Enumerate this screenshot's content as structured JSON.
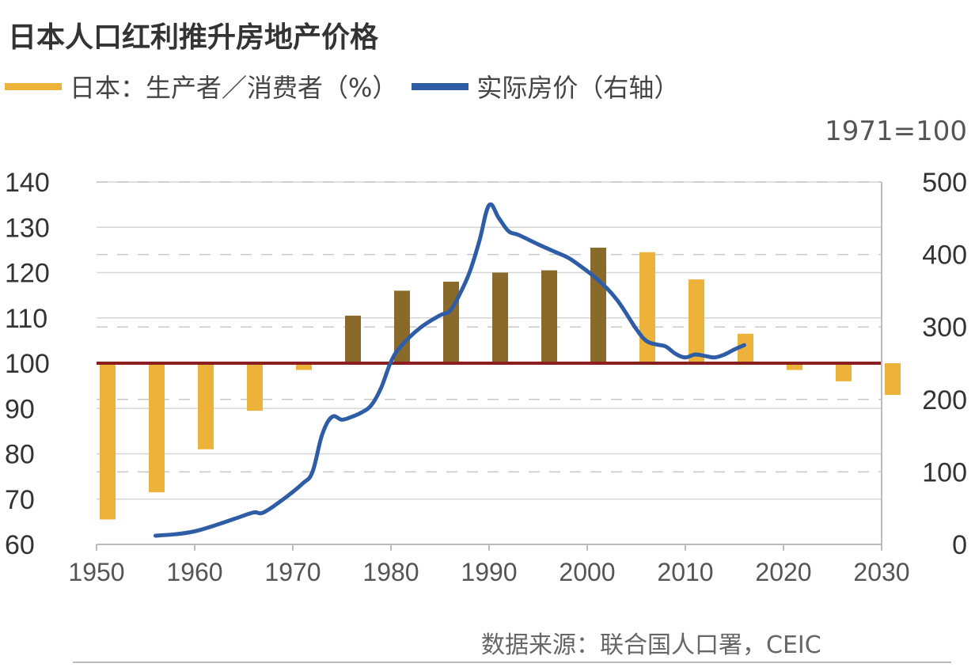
{
  "title": "日本人口红利推升房地产价格",
  "legend": {
    "bars": {
      "label": "日本：生产者／消费者（%）",
      "color": "#EDB23A",
      "shaded_color": "#8A6A2A"
    },
    "line": {
      "label": "实际房价（右轴）",
      "color": "#2E5DA6"
    }
  },
  "index_note": "1971=100",
  "source": "数据来源：联合国人口署，CEIC",
  "chart_data": {
    "type": "bar",
    "title": "日本人口红利推升房地产价格",
    "baseline": 100,
    "baseline_color": "#8B1E1E",
    "x_axis": {
      "range": [
        1950,
        2030
      ],
      "ticks": [
        1950,
        1960,
        1970,
        1980,
        1990,
        2000,
        2010,
        2020,
        2030
      ]
    },
    "y_left": {
      "range": [
        60,
        140
      ],
      "ticks": [
        60,
        70,
        80,
        90,
        100,
        110,
        120,
        130,
        140
      ]
    },
    "y_right": {
      "range": [
        0,
        500
      ],
      "ticks": [
        0,
        100,
        200,
        300,
        400,
        500
      ]
    },
    "bar_series": {
      "name": "日本：生产者／消费者（%）",
      "x": [
        1950,
        1955,
        1960,
        1965,
        1970,
        1975,
        1980,
        1985,
        1990,
        1995,
        2000,
        2005,
        2010,
        2015,
        2020,
        2025,
        2030
      ],
      "values": [
        65.5,
        71.5,
        81,
        89.5,
        98.5,
        110.5,
        116,
        118,
        120,
        120.5,
        125.5,
        124.5,
        118.5,
        106.5,
        98.5,
        96,
        93
      ]
    },
    "line_series": {
      "name": "实际房价（右轴）",
      "x": [
        1956,
        1958,
        1960,
        1962,
        1964,
        1966,
        1967,
        1969,
        1971,
        1972,
        1973,
        1974,
        1975,
        1976,
        1977,
        1978,
        1979,
        1980,
        1981,
        1983,
        1985,
        1986,
        1987,
        1988,
        1989,
        1990,
        1991,
        1992,
        1993,
        1995,
        1997,
        1998,
        1999,
        2001,
        2003,
        2005,
        2006,
        2007,
        2008,
        2009,
        2010,
        2011,
        2012,
        2013,
        2014,
        2015,
        2016
      ],
      "values": [
        12,
        14,
        18,
        26,
        35,
        44,
        44,
        62,
        84,
        100,
        152,
        176,
        172,
        176,
        182,
        192,
        216,
        252,
        273,
        299,
        316,
        322,
        345,
        375,
        418,
        468,
        450,
        432,
        427,
        414,
        402,
        396,
        387,
        366,
        338,
        297,
        281,
        276,
        273,
        263,
        258,
        262,
        260,
        258,
        262,
        269,
        275
      ]
    },
    "xlabel": "",
    "ylabel": ""
  }
}
